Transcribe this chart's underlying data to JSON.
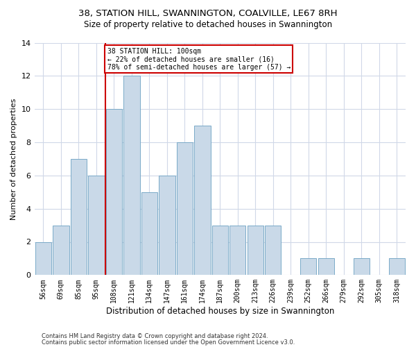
{
  "title1": "38, STATION HILL, SWANNINGTON, COALVILLE, LE67 8RH",
  "title2": "Size of property relative to detached houses in Swannington",
  "xlabel": "Distribution of detached houses by size in Swannington",
  "ylabel": "Number of detached properties",
  "categories": [
    "56sqm",
    "69sqm",
    "85sqm",
    "95sqm",
    "108sqm",
    "121sqm",
    "134sqm",
    "147sqm",
    "161sqm",
    "174sqm",
    "187sqm",
    "200sqm",
    "213sqm",
    "226sqm",
    "239sqm",
    "252sqm",
    "266sqm",
    "279sqm",
    "292sqm",
    "305sqm",
    "318sqm"
  ],
  "values": [
    2,
    3,
    7,
    6,
    10,
    12,
    5,
    6,
    8,
    9,
    3,
    3,
    3,
    3,
    0,
    1,
    1,
    0,
    1,
    0,
    1
  ],
  "bar_color": "#c9d9e8",
  "bar_edge_color": "#7aaac8",
  "annotation_text": "38 STATION HILL: 100sqm\n← 22% of detached houses are smaller (16)\n78% of semi-detached houses are larger (57) →",
  "annotation_box_color": "#ffffff",
  "annotation_box_edge_color": "#cc0000",
  "subject_line_color": "#cc0000",
  "grid_color": "#d0d8e8",
  "footnote1": "Contains HM Land Registry data © Crown copyright and database right 2024.",
  "footnote2": "Contains public sector information licensed under the Open Government Licence v3.0.",
  "ylim": [
    0,
    14
  ],
  "yticks": [
    0,
    2,
    4,
    6,
    8,
    10,
    12,
    14
  ],
  "bar_width": 0.92,
  "subject_bar_idx": 4
}
